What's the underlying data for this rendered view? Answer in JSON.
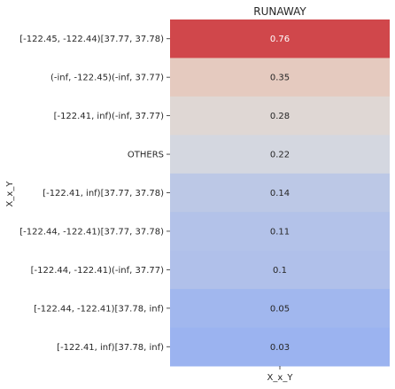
{
  "chart_data": {
    "type": "heatmap",
    "title": "RUNAWAY",
    "xlabel": "X_x_Y",
    "ylabel": "X_x_Y",
    "columns": [
      "X_x_Y"
    ],
    "rows": [
      "[-122.45, -122.44)[37.77, 37.78)",
      "(-inf, -122.45)(-inf, 37.77)",
      "[-122.41, inf)(-inf, 37.77)",
      "OTHERS",
      "[-122.41, inf)[37.77, 37.78)",
      "[-122.44, -122.41)[37.77, 37.78)",
      "[-122.44, -122.41)(-inf, 37.77)",
      "[-122.44, -122.41)[37.78, inf)",
      "[-122.41, inf)[37.78, inf)"
    ],
    "values": [
      0.76,
      0.35,
      0.28,
      0.22,
      0.14,
      0.11,
      0.1,
      0.05,
      0.03
    ],
    "value_labels": [
      "0.76",
      "0.35",
      "0.28",
      "0.22",
      "0.14",
      "0.11",
      "0.1",
      "0.05",
      "0.03"
    ],
    "colormap": "coolwarm",
    "colorbar": false,
    "grid": false
  }
}
